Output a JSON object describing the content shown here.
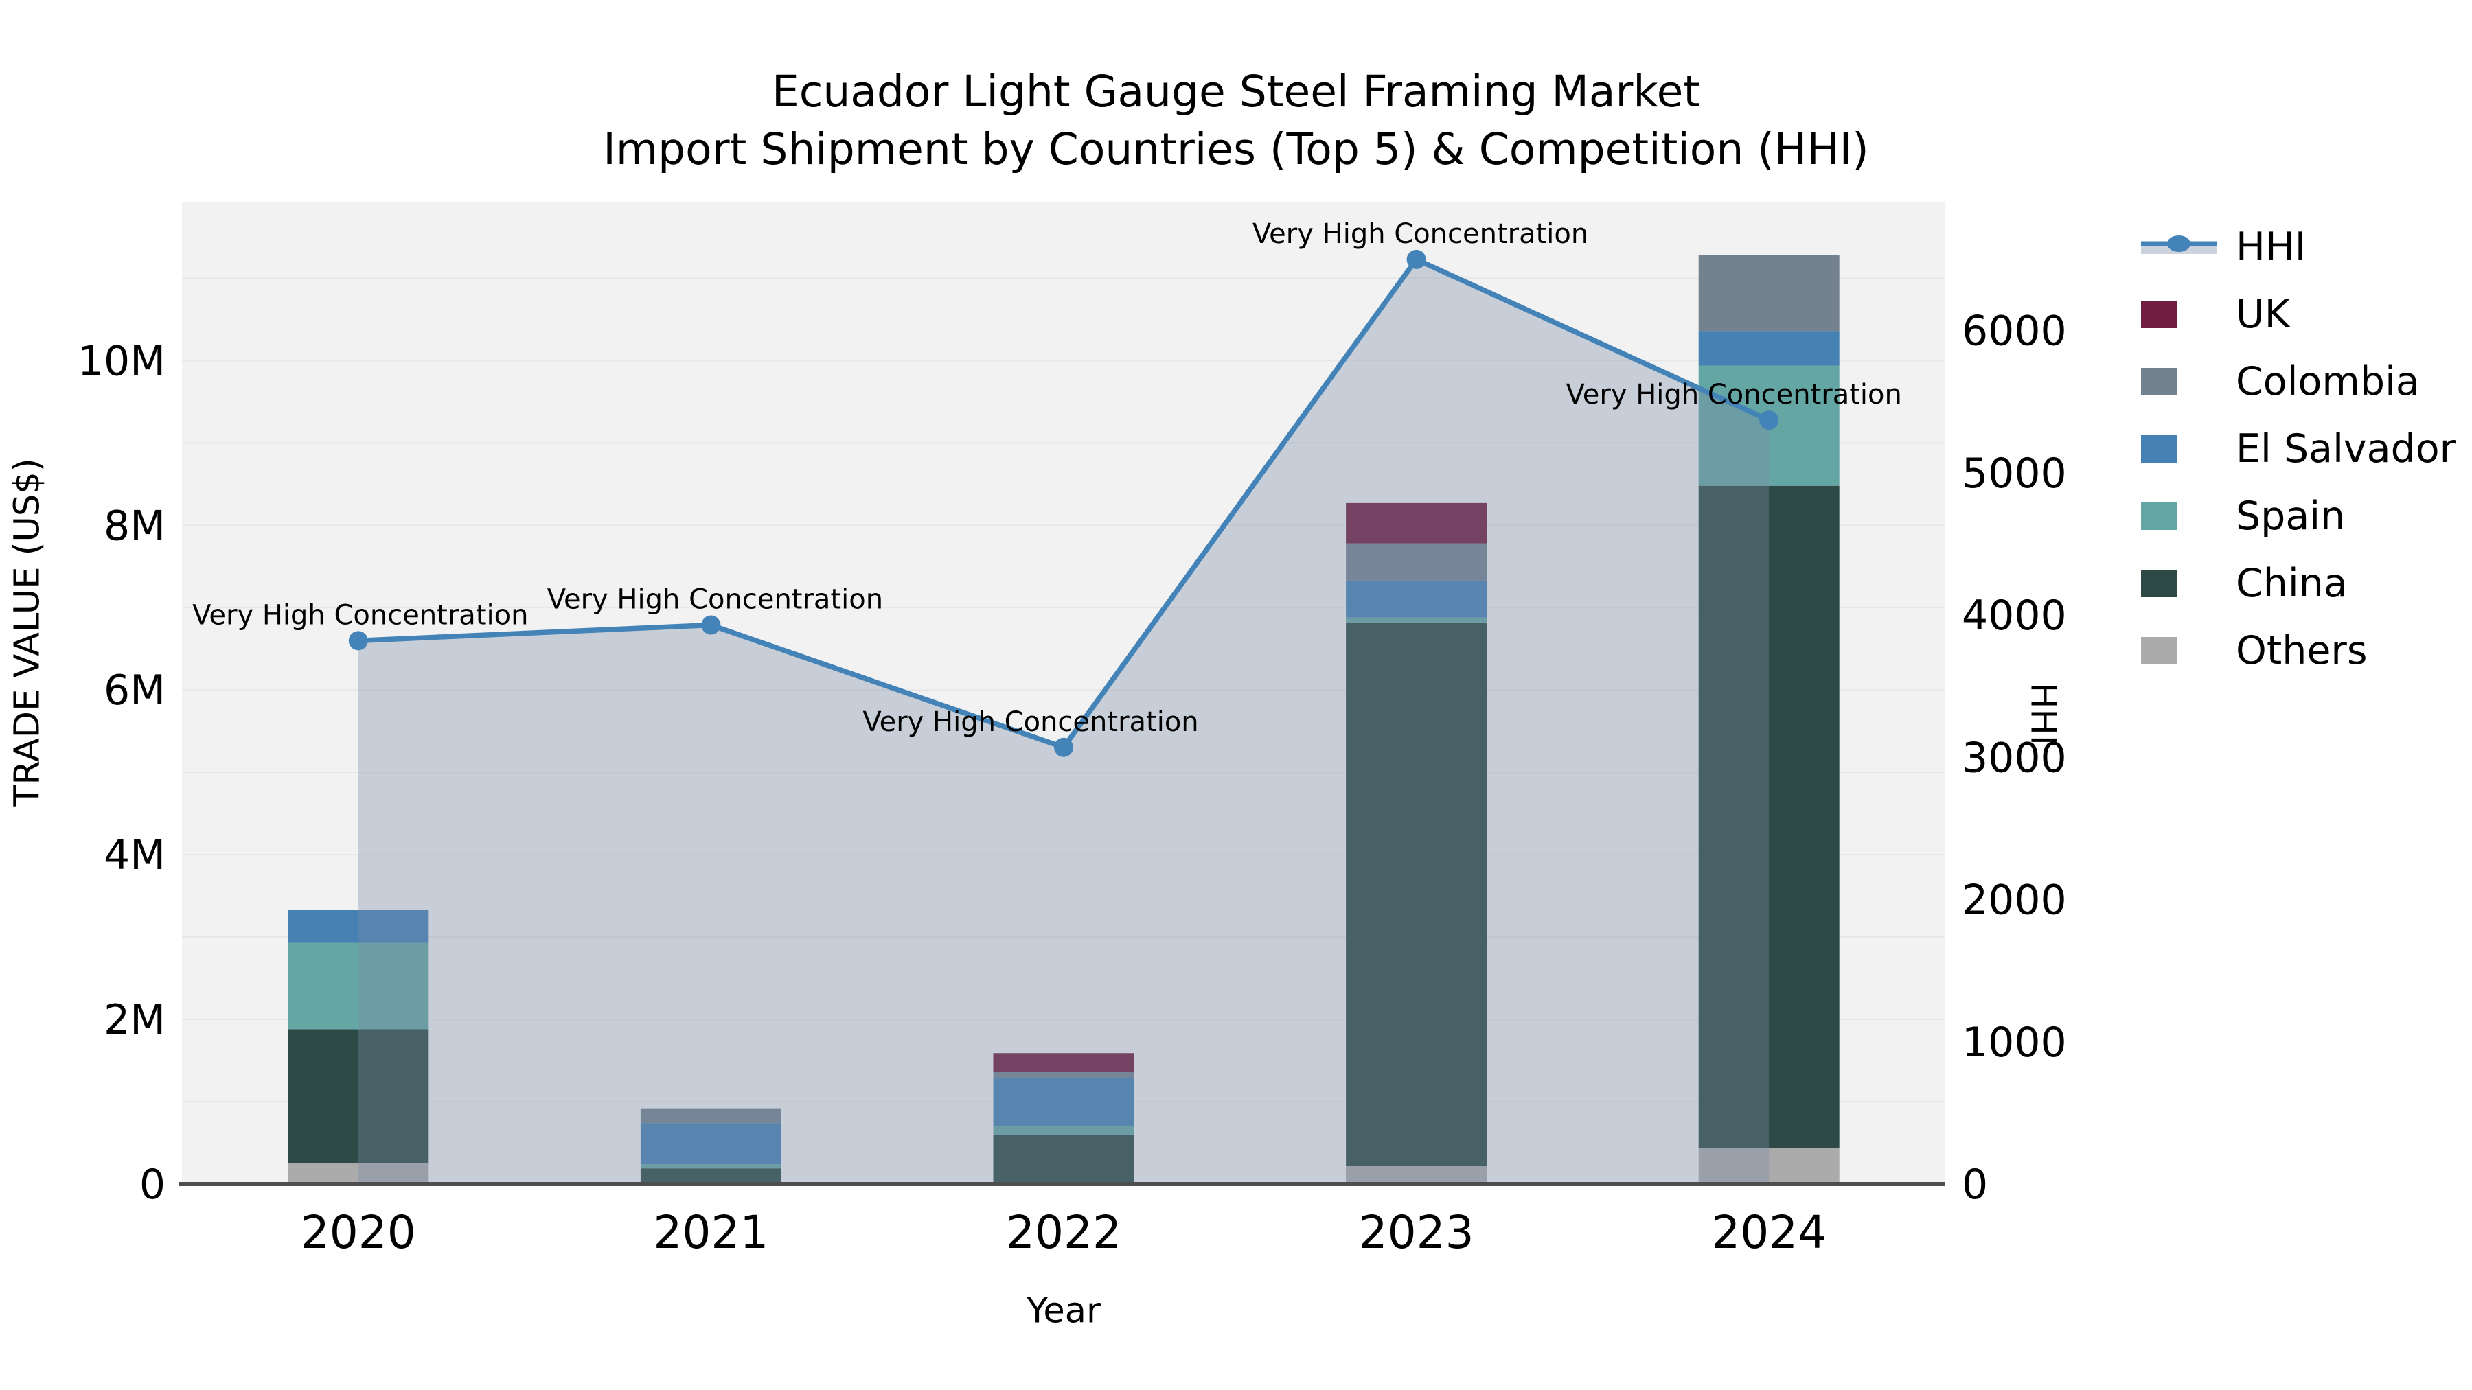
{
  "title": {
    "line1": "Ecuador Light Gauge Steel Framing Market",
    "line2": "Import Shipment by Countries (Top 5) & Competition (HHI)"
  },
  "axes": {
    "left": {
      "label": "TRADE VALUE (US$)",
      "tick_labels": [
        "0",
        "2M",
        "4M",
        "6M",
        "8M",
        "10M"
      ],
      "tick_values_musd": [
        0,
        2,
        4,
        6,
        8,
        10
      ],
      "max_musd": 11.92
    },
    "right": {
      "label": "HHI",
      "tick_labels": [
        "0",
        "1000",
        "2000",
        "3000",
        "4000",
        "5000",
        "6000"
      ],
      "tick_values": [
        0,
        1000,
        2000,
        3000,
        4000,
        5000,
        6000
      ],
      "max": 6900
    },
    "x": {
      "label": "Year",
      "categories": [
        "2020",
        "2021",
        "2022",
        "2023",
        "2024"
      ]
    }
  },
  "chart_data": {
    "type": "combo-stacked-bar-line",
    "categories": [
      "2020",
      "2021",
      "2022",
      "2023",
      "2024"
    ],
    "bar_unit": "million US$ trade value",
    "stack_order_bottom_to_top": [
      "Others",
      "China",
      "Spain",
      "El Salvador",
      "Colombia",
      "UK"
    ],
    "bar_series": [
      {
        "name": "UK",
        "color": "#701d40",
        "values_musd": [
          0,
          0,
          0.23,
          0.49,
          0
        ]
      },
      {
        "name": "Colombia",
        "color": "#74818f",
        "values_musd": [
          0,
          0.18,
          0.07,
          0.45,
          0.92
        ]
      },
      {
        "name": "El Salvador",
        "color": "#4681b4",
        "values_musd": [
          0.4,
          0.5,
          0.59,
          0.45,
          0.42
        ]
      },
      {
        "name": "Spain",
        "color": "#64a6a3",
        "values_musd": [
          1.05,
          0.05,
          0.1,
          0.06,
          1.46
        ]
      },
      {
        "name": "China",
        "color": "#2d4a46",
        "values_musd": [
          1.63,
          0.17,
          0.58,
          6.6,
          8.04
        ]
      },
      {
        "name": "Others",
        "color": "#ababab",
        "values_musd": [
          0.25,
          0.02,
          0.02,
          0.22,
          0.44
        ]
      }
    ],
    "bar_totals_musd": [
      3.33,
      0.92,
      1.59,
      8.27,
      11.28
    ],
    "hhi_line": {
      "name": "HHI",
      "axis": "right",
      "color": "#4383b8",
      "area_fill": "rgba(122,140,165,0.35)",
      "values": [
        3820,
        3930,
        3070,
        6500,
        5370
      ]
    },
    "point_annotations": [
      "Very High Concentration",
      "Very High Concentration",
      "Very High Concentration",
      "Very High Concentration",
      "Very High Concentration"
    ],
    "grid": "horizontal gridlines every 1M",
    "legend_position": "right"
  },
  "legend": {
    "items": [
      {
        "label": "HHI",
        "type": "line-marker",
        "color": "#4383b8",
        "band_color": "#ccd3dc"
      },
      {
        "label": "UK",
        "type": "patch",
        "color": "#701d40"
      },
      {
        "label": "Colombia",
        "type": "patch",
        "color": "#74818f"
      },
      {
        "label": "El Salvador",
        "type": "patch",
        "color": "#4681b4"
      },
      {
        "label": "Spain",
        "type": "patch",
        "color": "#64a6a3"
      },
      {
        "label": "China",
        "type": "patch",
        "color": "#2d4a46"
      },
      {
        "label": "Others",
        "type": "patch",
        "color": "#ababab"
      }
    ]
  },
  "colors": {
    "plot_background": "#f2f2f2",
    "figure_background": "#ffffff",
    "gridline": "#e7e7e7",
    "axis_line": "#4d4d4d",
    "text": "#000000"
  }
}
